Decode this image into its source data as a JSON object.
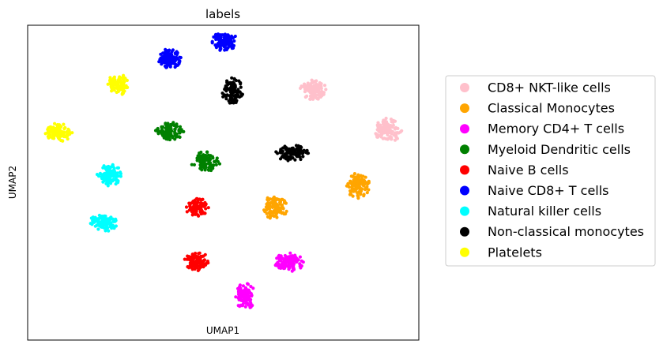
{
  "chart_data": {
    "type": "scatter",
    "title": "labels",
    "xlabel": "UMAP1",
    "ylabel": "UMAP2",
    "xlim": [
      0,
      100
    ],
    "ylim": [
      0,
      100
    ],
    "xticks": [],
    "yticks": [],
    "grid": false,
    "legend": "right, outside plot",
    "series": [
      {
        "name": "CD8+ NKT-like cells",
        "color": "#ffc0cb",
        "clusters": [
          {
            "x": 73.2,
            "y": 79.4,
            "rx": 3.6,
            "ry": 3.3,
            "n": 110
          },
          {
            "x": 92.1,
            "y": 66.7,
            "rx": 3.6,
            "ry": 3.8,
            "n": 110
          }
        ]
      },
      {
        "name": "Classical Monocytes",
        "color": "#ffa500",
        "clusters": [
          {
            "x": 84.4,
            "y": 49.0,
            "rx": 3.1,
            "ry": 4.3,
            "n": 110
          },
          {
            "x": 63.3,
            "y": 42.2,
            "rx": 3.3,
            "ry": 3.8,
            "n": 110
          }
        ]
      },
      {
        "name": "Memory CD4+ T cells",
        "color": "#ff00ff",
        "clusters": [
          {
            "x": 66.9,
            "y": 24.7,
            "rx": 3.8,
            "ry": 3.0,
            "n": 110
          },
          {
            "x": 55.6,
            "y": 13.9,
            "rx": 2.6,
            "ry": 4.2,
            "n": 110
          }
        ]
      },
      {
        "name": "Myeloid Dendritic cells",
        "color": "#008000",
        "clusters": [
          {
            "x": 36.3,
            "y": 66.4,
            "rx": 3.6,
            "ry": 3.0,
            "n": 110
          },
          {
            "x": 45.4,
            "y": 56.6,
            "rx": 3.8,
            "ry": 3.2,
            "n": 90
          }
        ]
      },
      {
        "name": "Naive B cells",
        "color": "#ff0000",
        "clusters": [
          {
            "x": 43.4,
            "y": 42.2,
            "rx": 3.1,
            "ry": 2.9,
            "n": 90
          },
          {
            "x": 43.2,
            "y": 25.1,
            "rx": 3.1,
            "ry": 3.2,
            "n": 110
          }
        ]
      },
      {
        "name": "Naive CD8+ T cells",
        "color": "#0000ff",
        "clusters": [
          {
            "x": 36.3,
            "y": 89.4,
            "rx": 3.1,
            "ry": 3.3,
            "n": 110
          },
          {
            "x": 50.2,
            "y": 95.0,
            "rx": 3.3,
            "ry": 3.2,
            "n": 110
          }
        ]
      },
      {
        "name": "Natural killer  cells",
        "color": "#00ffff",
        "clusters": [
          {
            "x": 20.8,
            "y": 52.5,
            "rx": 3.1,
            "ry": 3.6,
            "n": 110
          },
          {
            "x": 19.4,
            "y": 37.3,
            "rx": 3.6,
            "ry": 2.8,
            "n": 110
          }
        ]
      },
      {
        "name": "Non-classical monocytes",
        "color": "#000000",
        "clusters": [
          {
            "x": 52.4,
            "y": 79.2,
            "rx": 2.8,
            "ry": 4.3,
            "n": 110
          },
          {
            "x": 67.5,
            "y": 59.5,
            "rx": 4.3,
            "ry": 2.6,
            "n": 110
          }
        ]
      },
      {
        "name": "Platelets",
        "color": "#ffff00",
        "clusters": [
          {
            "x": 23.2,
            "y": 81.3,
            "rx": 2.8,
            "ry": 3.6,
            "n": 110
          },
          {
            "x": 7.9,
            "y": 66.0,
            "rx": 3.5,
            "ry": 3.0,
            "n": 110
          }
        ]
      }
    ]
  }
}
